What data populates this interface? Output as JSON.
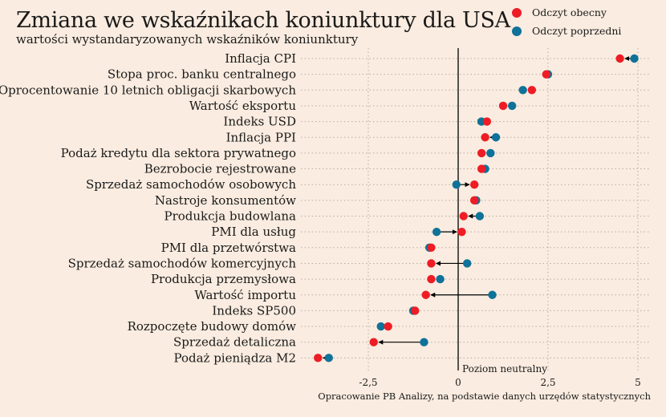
{
  "chart_data": {
    "type": "dot-arrow",
    "title": "Zmiana we wskaźnikach koniunktury dla USA",
    "subtitle": "wartości wystandaryzowanych wskaźników koniunktury",
    "categories": [
      "Inflacja CPI",
      "Stopa proc. banku centralnego",
      "Oprocentowanie 10 letnich obligacji skarbowych",
      "Wartość eksportu",
      "Indeks USD",
      "Inflacja PPI",
      "Podaż kredytu dla sektora prywatnego",
      "Bezrobocie rejestrowane",
      "Sprzedaż samochodów osobowych",
      "Nastroje konsumentów",
      "Produkcja budowlana",
      "PMI dla usług",
      "PMI dla przetwórstwa",
      "Sprzedaż samochodów komercyjnych",
      "Produkcja przemysłowa",
      "Wartość importu",
      "Indeks SP500",
      "Rozpoczęte budowy domów",
      "Sprzedaż detaliczna",
      "Podaż pieniądza M2"
    ],
    "series": [
      {
        "name": "Odczyt obecny",
        "color": "#ee1c25",
        "values": [
          4.5,
          2.45,
          2.05,
          1.25,
          0.8,
          0.75,
          0.65,
          0.65,
          0.45,
          0.45,
          0.15,
          0.1,
          -0.75,
          -0.75,
          -0.75,
          -0.9,
          -1.2,
          -1.95,
          -2.35,
          -3.9
        ]
      },
      {
        "name": "Odczyt poprzedni",
        "color": "#0f7299",
        "values": [
          4.9,
          2.5,
          1.8,
          1.5,
          0.65,
          1.05,
          0.9,
          0.75,
          -0.05,
          0.5,
          0.6,
          -0.6,
          -0.8,
          0.25,
          -0.5,
          0.95,
          -1.25,
          -2.15,
          -0.95,
          -3.6
        ]
      }
    ],
    "x_ticks": [
      "-2,5",
      "0",
      "2,5",
      "5"
    ],
    "x_tick_values": [
      -2.5,
      0,
      2.5,
      5
    ],
    "xlim": [
      -4.35,
      5.35
    ],
    "zero_line_label": "Poziom neutralny",
    "source": "Opracowanie  PB Analizy, na podstawie danych urzędów statystycznych",
    "grid": "dotted",
    "legend_position": "top-right"
  }
}
